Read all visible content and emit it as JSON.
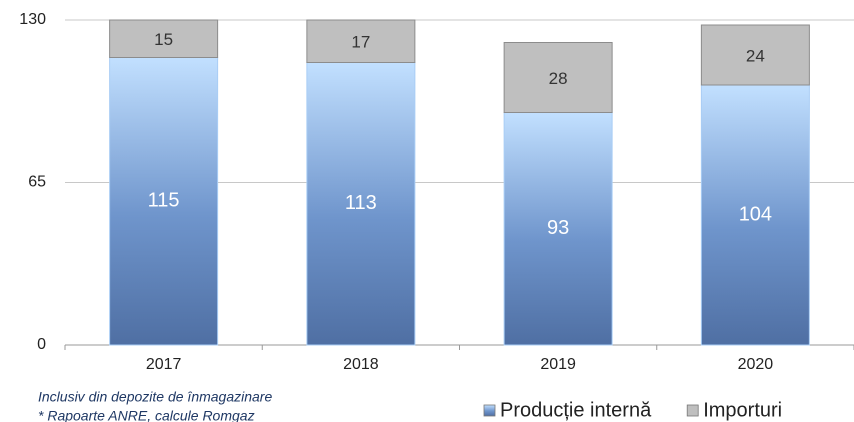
{
  "chart_data": {
    "type": "stacked_bar",
    "categories": [
      "2017",
      "2018",
      "2019",
      "2020"
    ],
    "series": [
      {
        "name": "Producție internă",
        "color": "#5b7fb8",
        "values": [
          115,
          113,
          93,
          104
        ]
      },
      {
        "name": "Importuri",
        "color": "#bfbfbf",
        "values": [
          15,
          17,
          28,
          24
        ]
      }
    ],
    "ylim": [
      0,
      130
    ],
    "yticks": [
      0,
      65,
      130
    ],
    "grid": true,
    "legend": "bottom-right",
    "notes": [
      "Inclusiv din depozite de înmagazinare",
      "* Rapoarte ANRE, calcule Romgaz"
    ]
  }
}
